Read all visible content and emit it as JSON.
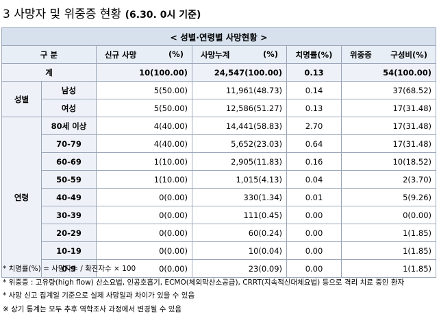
{
  "title": {
    "main": "3 사망자 및 위중증 현황",
    "date": "(6.30. 0시 기준)"
  },
  "table": {
    "banner": "< 성별·연령별 사망현황 >",
    "headers": {
      "category": "구 분",
      "new_deaths": "신규 사망",
      "new_deaths_unit": "(%)",
      "cum_deaths": "사망누계",
      "cum_deaths_unit": "(%)",
      "fatality": "치명률(%)",
      "critical": "위중증",
      "critical_unit": "구성비(%)"
    },
    "total": {
      "label": "계",
      "new": "10(100.00)",
      "cum": "24,547(100.00)",
      "rate": "0.13",
      "crit": "54(100.00)"
    },
    "sex": {
      "group": "성별",
      "rows": [
        {
          "label": "남성",
          "new": "5(50.00)",
          "cum": "11,961(48.73)",
          "rate": "0.14",
          "crit": "37(68.52)"
        },
        {
          "label": "여성",
          "new": "5(50.00)",
          "cum": "12,586(51.27)",
          "rate": "0.13",
          "crit": "17(31.48)"
        }
      ]
    },
    "age": {
      "group": "연령",
      "rows": [
        {
          "label": "80세 이상",
          "new": "4(40.00)",
          "cum": "14,441(58.83)",
          "rate": "2.70",
          "crit": "17(31.48)"
        },
        {
          "label": "70-79",
          "new": "4(40.00)",
          "cum": "5,652(23.03)",
          "rate": "0.64",
          "crit": "17(31.48)"
        },
        {
          "label": "60-69",
          "new": "1(10.00)",
          "cum": "2,905(11.83)",
          "rate": "0.16",
          "crit": "10(18.52)"
        },
        {
          "label": "50-59",
          "new": "1(10.00)",
          "cum": "1,015(4.13)",
          "rate": "0.04",
          "crit": "2(3.70)"
        },
        {
          "label": "40-49",
          "new": "0(0.00)",
          "cum": "330(1.34)",
          "rate": "0.01",
          "crit": "5(9.26)"
        },
        {
          "label": "30-39",
          "new": "0(0.00)",
          "cum": "111(0.45)",
          "rate": "0.00",
          "crit": "0(0.00)"
        },
        {
          "label": "20-29",
          "new": "0(0.00)",
          "cum": "60(0.24)",
          "rate": "0.00",
          "crit": "1(1.85)"
        },
        {
          "label": "10-19",
          "new": "0(0.00)",
          "cum": "10(0.04)",
          "rate": "0.00",
          "crit": "1(1.85)"
        },
        {
          "label": "0-9",
          "new": "0(0.00)",
          "cum": "23(0.09)",
          "rate": "0.00",
          "crit": "1(1.85)"
        }
      ]
    }
  },
  "notes": [
    "* 치명률(%) = 사망자수 / 확진자수 × 100",
    "* 위중증 : 고유량(high flow) 산소요법, 인공호흡기, ECMO(체외막산소공급), CRRT(지속적신대체요법) 등으로 격리 치료 중인 환자",
    "* 사망 신고 집계일 기준으로 실제 사망일과 차이가 있을 수 있음",
    "※ 상기 통계는 모두 추후 역학조사 과정에서 변경될 수 있음"
  ]
}
